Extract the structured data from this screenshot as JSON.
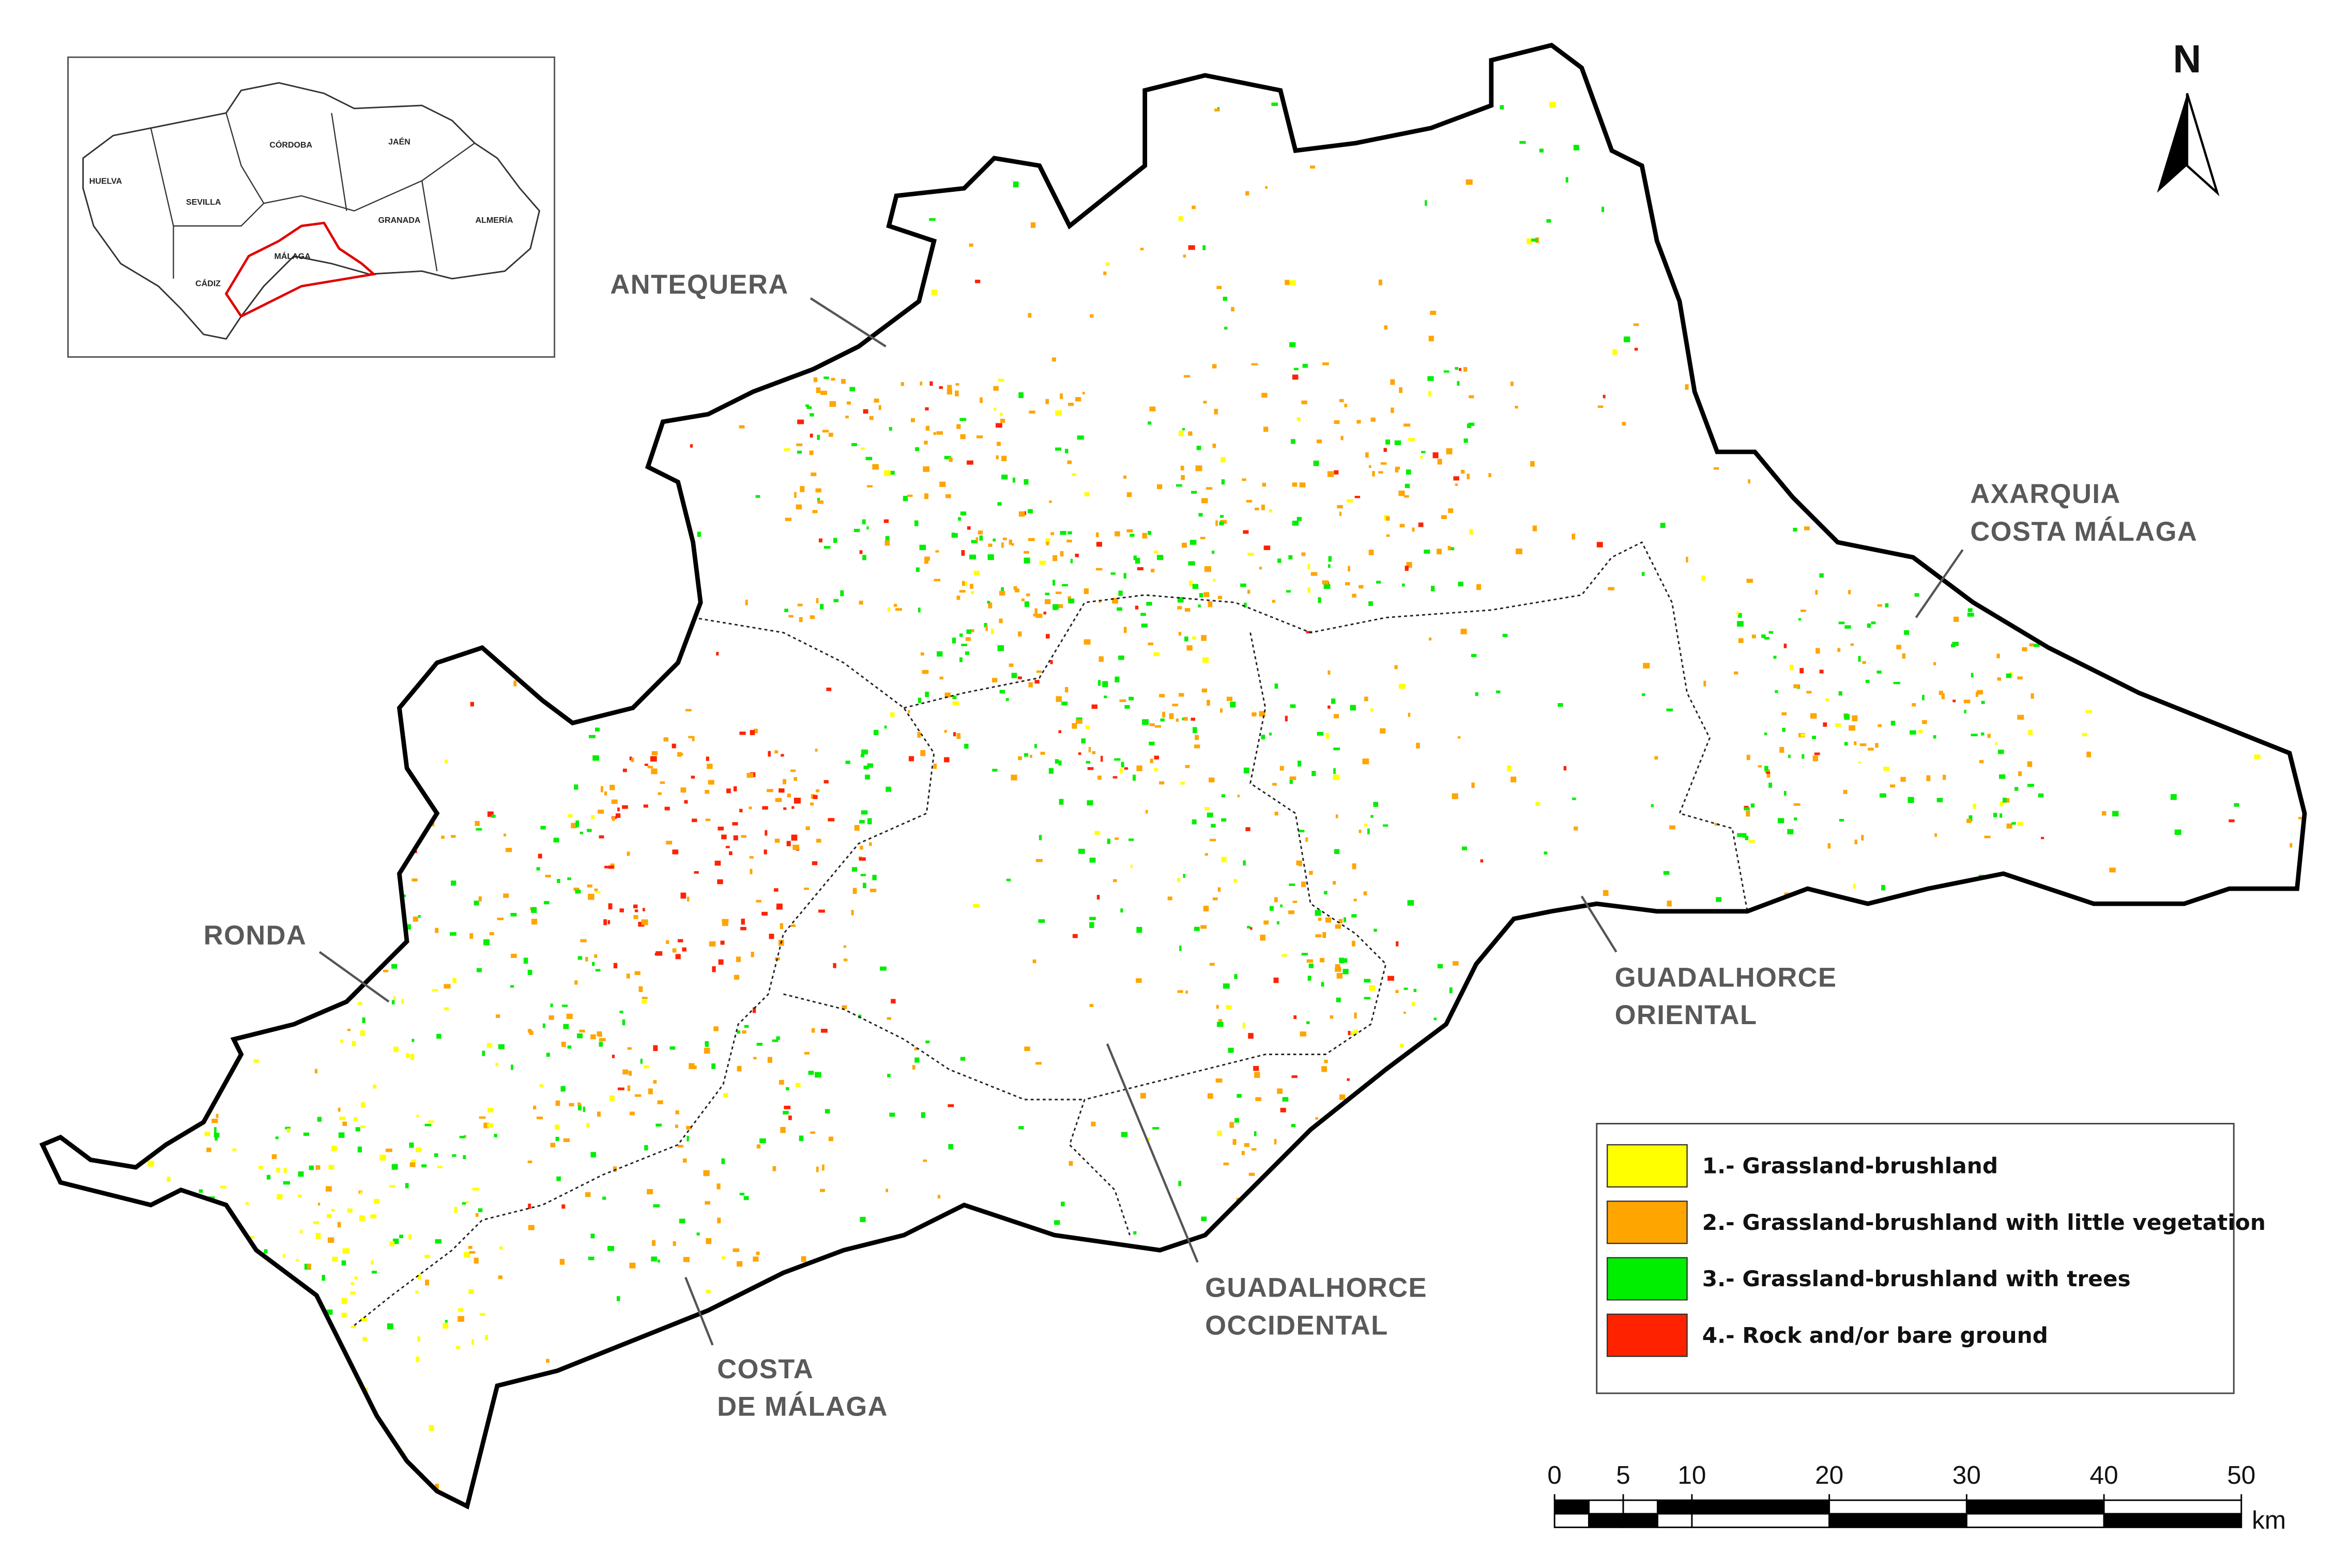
{
  "inset": {
    "labels": [
      "HUELVA",
      "SEVILLA",
      "CÓRDOBA",
      "JAÉN",
      "GRANADA",
      "ALMERÍA",
      "MÁLAGA",
      "CÁDIZ"
    ]
  },
  "north": "N",
  "regions": [
    {
      "lines": [
        "ANTEQUERA"
      ]
    },
    {
      "lines": [
        "AXARQUIA",
        "COSTA MÁLAGA"
      ]
    },
    {
      "lines": [
        "RONDA"
      ]
    },
    {
      "lines": [
        "GUADALHORCE",
        "ORIENTAL"
      ]
    },
    {
      "lines": [
        "GUADALHORCE",
        "OCCIDENTAL"
      ]
    },
    {
      "lines": [
        "COSTA",
        "DE MÁLAGA"
      ]
    }
  ],
  "legend": {
    "items": [
      {
        "label": "1.- Grassland-brushland",
        "color": "#ffff00"
      },
      {
        "label": "2.- Grassland-brushland  with little vegetation",
        "color": "#ffa500"
      },
      {
        "label": "3.- Grassland-brushland  with trees",
        "color": "#00ee00"
      },
      {
        "label": "4.- Rock and/or  bare ground",
        "color": "#ff2200"
      }
    ]
  },
  "scale": {
    "ticks": [
      0,
      5,
      10,
      20,
      30,
      40,
      50
    ],
    "unit": "km"
  }
}
